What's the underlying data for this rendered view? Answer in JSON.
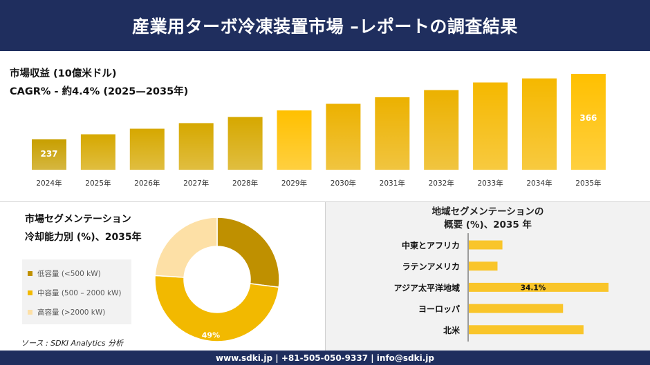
{
  "header": {
    "title": "産業用ターボ冷凍装置市場 –レポートの調査結果"
  },
  "metrics": {
    "revenue_label": "市場収益 (10億米ドル)",
    "cagr_label": "CAGR% - 約4.4% (2025—2035年)"
  },
  "segmentation": {
    "title": "市場セグメンテーション",
    "subtitle": "冷却能力別 (%)、2035年",
    "legend": [
      {
        "label": "低容量 (<500 kW)",
        "color": "#bf9000"
      },
      {
        "label": "中容量 (500 – 2000 kW)",
        "color": "#f2b900"
      },
      {
        "label": "高容量 (>2000 kW)",
        "color": "#fde0a6"
      }
    ]
  },
  "region": {
    "title_line1": "地域セグメンテーションの",
    "title_line2": "概要 (%)、2035 年"
  },
  "source": "ソース : SDKI Analytics 分析",
  "footer": {
    "text": "www.sdki.jp | +81-505-050-9337 | info@sdki.jp"
  },
  "chart_data": [
    {
      "type": "bar",
      "categories": [
        "2024年",
        "2025年",
        "2026年",
        "2027年",
        "2028年",
        "2029年",
        "2030年",
        "2031年",
        "2032年",
        "2033年",
        "2034年",
        "2035年"
      ],
      "values": [
        237,
        247,
        258,
        269,
        281,
        294,
        307,
        320,
        334,
        349,
        357,
        366
      ],
      "data_labels": {
        "0": "237",
        "11": "366"
      },
      "colors": [
        "#c89f00",
        "#d6a800",
        "#d6a800",
        "#d6a800",
        "#d6a800",
        "#ffc000",
        "#ecb100",
        "#ecb100",
        "#ecb100",
        "#f5b800",
        "#f5b800",
        "#ffc000"
      ],
      "grid": false
    },
    {
      "type": "pie",
      "categories": [
        "低容量 (<500 kW)",
        "中容量 (500 – 2000 kW)",
        "高容量 (>2000 kW)"
      ],
      "values": [
        27,
        49,
        24
      ],
      "colors": [
        "#bf9000",
        "#f2b900",
        "#fde0a6"
      ],
      "data_labels": {
        "1": "49%"
      },
      "donut": true
    },
    {
      "type": "bar",
      "orientation": "horizontal",
      "categories": [
        "中東とアフリカ",
        "ラテンアメリカ",
        "アジア太平洋地域",
        "ヨーロッパ",
        "北米"
      ],
      "values": [
        8.2,
        7.0,
        34.1,
        23.0,
        28.0
      ],
      "data_labels": {
        "2": "34.1%"
      },
      "color": "#f9c52a"
    }
  ]
}
